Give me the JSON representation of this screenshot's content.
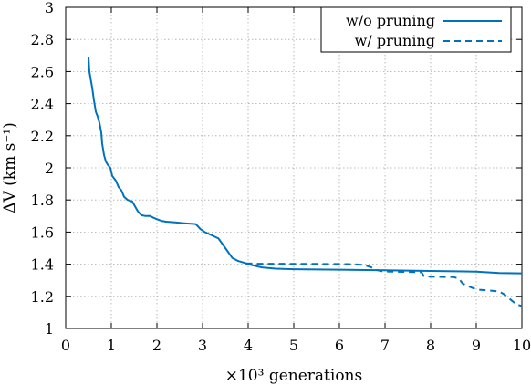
{
  "chart_data": {
    "type": "line",
    "xlabel": "×10³ generations",
    "ylabel": "ΔV (km s⁻¹)",
    "xlim": [
      0,
      10
    ],
    "ylim": [
      1,
      3
    ],
    "x_ticks": [
      "0",
      "1",
      "2",
      "3",
      "4",
      "5",
      "6",
      "7",
      "8",
      "9",
      "10"
    ],
    "y_ticks": [
      "1",
      "1.2",
      "1.4",
      "1.6",
      "1.8",
      "2",
      "2.2",
      "2.4",
      "2.6",
      "2.8",
      "3"
    ],
    "grid": true,
    "legend_position": "top-right",
    "colors": {
      "series": "#0072bd"
    },
    "series": [
      {
        "name": "w/o pruning",
        "style": "solid",
        "points": [
          [
            0.5,
            2.69
          ],
          [
            0.52,
            2.6
          ],
          [
            0.58,
            2.5
          ],
          [
            0.62,
            2.42
          ],
          [
            0.66,
            2.35
          ],
          [
            0.7,
            2.32
          ],
          [
            0.74,
            2.28
          ],
          [
            0.78,
            2.22
          ],
          [
            0.8,
            2.15
          ],
          [
            0.84,
            2.08
          ],
          [
            0.88,
            2.04
          ],
          [
            0.92,
            2.02
          ],
          [
            0.98,
            2.0
          ],
          [
            1.02,
            1.95
          ],
          [
            1.1,
            1.92
          ],
          [
            1.16,
            1.88
          ],
          [
            1.22,
            1.86
          ],
          [
            1.28,
            1.82
          ],
          [
            1.36,
            1.8
          ],
          [
            1.46,
            1.79
          ],
          [
            1.52,
            1.76
          ],
          [
            1.58,
            1.73
          ],
          [
            1.66,
            1.705
          ],
          [
            1.75,
            1.7
          ],
          [
            1.85,
            1.7
          ],
          [
            1.92,
            1.69
          ],
          [
            2.0,
            1.68
          ],
          [
            2.1,
            1.67
          ],
          [
            2.2,
            1.665
          ],
          [
            2.4,
            1.66
          ],
          [
            2.6,
            1.655
          ],
          [
            2.85,
            1.65
          ],
          [
            2.95,
            1.62
          ],
          [
            3.05,
            1.6
          ],
          [
            3.2,
            1.58
          ],
          [
            3.35,
            1.56
          ],
          [
            3.45,
            1.52
          ],
          [
            3.55,
            1.48
          ],
          [
            3.65,
            1.44
          ],
          [
            3.78,
            1.42
          ],
          [
            3.9,
            1.41
          ],
          [
            4.0,
            1.4
          ],
          [
            4.3,
            1.38
          ],
          [
            4.6,
            1.372
          ],
          [
            5.0,
            1.369
          ],
          [
            6.0,
            1.366
          ],
          [
            7.0,
            1.362
          ],
          [
            8.0,
            1.358
          ],
          [
            9.0,
            1.354
          ],
          [
            9.5,
            1.345
          ],
          [
            10.0,
            1.343
          ]
        ]
      },
      {
        "name": "w/ pruning",
        "style": "dashed",
        "points": [
          [
            3.95,
            1.405
          ],
          [
            4.2,
            1.403
          ],
          [
            5.0,
            1.402
          ],
          [
            6.0,
            1.401
          ],
          [
            6.3,
            1.4
          ],
          [
            6.55,
            1.395
          ],
          [
            6.7,
            1.38
          ],
          [
            6.8,
            1.365
          ],
          [
            6.95,
            1.355
          ],
          [
            7.3,
            1.353
          ],
          [
            7.8,
            1.35
          ],
          [
            7.85,
            1.325
          ],
          [
            8.0,
            1.322
          ],
          [
            8.5,
            1.32
          ],
          [
            8.62,
            1.31
          ],
          [
            8.7,
            1.28
          ],
          [
            8.85,
            1.26
          ],
          [
            9.0,
            1.242
          ],
          [
            9.3,
            1.236
          ],
          [
            9.5,
            1.23
          ],
          [
            9.6,
            1.215
          ],
          [
            9.75,
            1.18
          ],
          [
            9.88,
            1.15
          ],
          [
            10.0,
            1.14
          ]
        ]
      }
    ]
  }
}
